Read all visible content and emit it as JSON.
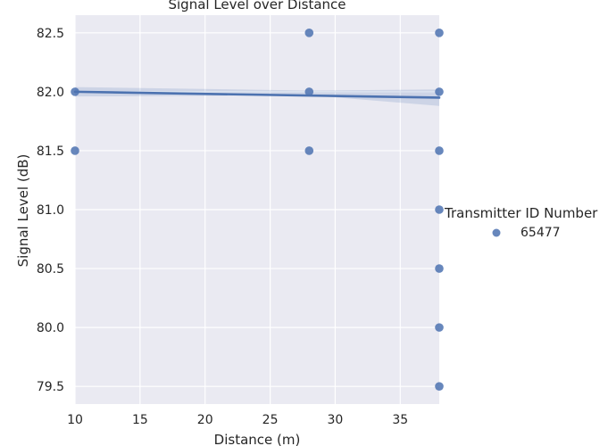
{
  "chart_data": {
    "type": "scatter",
    "title": "Signal Level over Distance",
    "xlabel": "Distance (m)",
    "ylabel": "Signal Level (dB)",
    "xlim": [
      10,
      38
    ],
    "ylim": [
      79.35,
      82.65
    ],
    "xticks": [
      "10",
      "15",
      "20",
      "25",
      "30",
      "35"
    ],
    "xtick_values": [
      10,
      15,
      20,
      25,
      30,
      35
    ],
    "yticks": [
      "79.5",
      "80.0",
      "80.5",
      "81.0",
      "81.5",
      "82.0",
      "82.5"
    ],
    "ytick_values": [
      79.5,
      80.0,
      80.5,
      81.0,
      81.5,
      82.0,
      82.5
    ],
    "grid": true,
    "legend": {
      "title": "Transmitter ID Number",
      "position": "right",
      "entries": [
        "65477"
      ]
    },
    "series": [
      {
        "name": "65477",
        "color": "#4c72b0",
        "points": [
          [
            10,
            82.0
          ],
          [
            10,
            81.5
          ],
          [
            28,
            82.5
          ],
          [
            28,
            82.0
          ],
          [
            28,
            81.5
          ],
          [
            38,
            82.5
          ],
          [
            38,
            82.0
          ],
          [
            38,
            81.5
          ],
          [
            38,
            81.0
          ],
          [
            38,
            80.5
          ],
          [
            38,
            80.0
          ],
          [
            38,
            79.5
          ]
        ]
      }
    ],
    "regression": {
      "color": "#4c72b0",
      "line": [
        [
          10,
          82.0
        ],
        [
          38,
          81.95
        ]
      ],
      "ci_upper": [
        [
          10,
          82.04
        ],
        [
          28,
          82.01
        ],
        [
          38,
          82.02
        ]
      ],
      "ci_lower": [
        [
          10,
          81.96
        ],
        [
          28,
          81.97
        ],
        [
          38,
          81.88
        ]
      ]
    }
  }
}
